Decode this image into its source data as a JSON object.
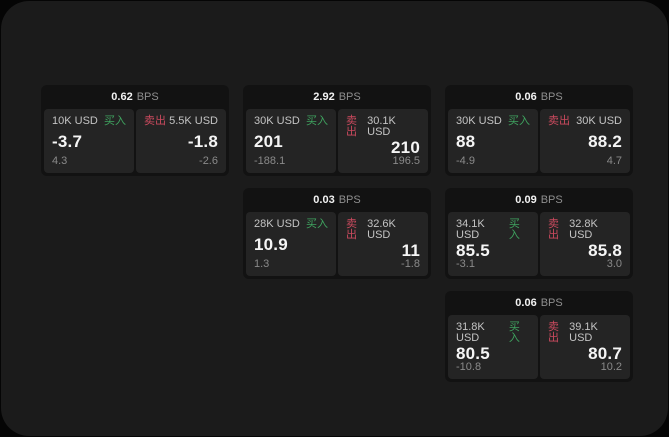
{
  "labels": {
    "bps_unit": "BPS",
    "buy_tag": "买入",
    "sell_tag": "卖出"
  },
  "colors": {
    "page_bg": "#1b1b1b",
    "card_bg": "#121212",
    "tile_bg": "#242424",
    "buy_green": "#3fa35f",
    "sell_red": "#cb4a5e",
    "value_text": "#f5f5f5",
    "muted_text": "#8a8a8a"
  },
  "cards": [
    {
      "bps": "0.62",
      "buy": {
        "size": "10K USD",
        "price": "-3.7",
        "delta": "4.3"
      },
      "sell": {
        "size": "5.5K USD",
        "price": "-1.8",
        "delta": "-2.6"
      }
    },
    {
      "bps": "2.92",
      "buy": {
        "size": "30K USD",
        "price": "201",
        "delta": "-188.1"
      },
      "sell": {
        "size": "30.1K USD",
        "price": "210",
        "delta": "196.5"
      }
    },
    {
      "bps": "0.06",
      "buy": {
        "size": "30K USD",
        "price": "88",
        "delta": "-4.9"
      },
      "sell": {
        "size": "30K USD",
        "price": "88.2",
        "delta": "4.7"
      }
    },
    {
      "bps": "0.03",
      "buy": {
        "size": "28K USD",
        "price": "10.9",
        "delta": "1.3"
      },
      "sell": {
        "size": "32.6K USD",
        "price": "11",
        "delta": "-1.8"
      }
    },
    {
      "bps": "0.09",
      "buy": {
        "size": "34.1K USD",
        "price": "85.5",
        "delta": "-3.1"
      },
      "sell": {
        "size": "32.8K USD",
        "price": "85.8",
        "delta": "3.0"
      }
    },
    {
      "bps": "0.06",
      "buy": {
        "size": "31.8K USD",
        "price": "80.5",
        "delta": "-10.8"
      },
      "sell": {
        "size": "39.1K USD",
        "price": "80.7",
        "delta": "10.2"
      }
    }
  ]
}
